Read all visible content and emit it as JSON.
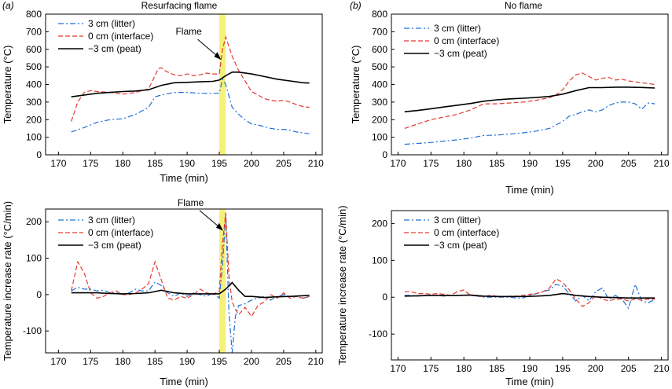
{
  "figure": {
    "title_a": "Resurfacing flame",
    "title_b": "No flame",
    "letter_a": "(a)",
    "letter_b": "(b)",
    "flame_label": "Flame",
    "highlight_color": "#f5f07a"
  },
  "chart_data": [
    {
      "id": "a-top",
      "type": "line",
      "title": "",
      "xlabel": "Time (min)",
      "ylabel": "Temperature (°C)",
      "xlim": [
        168,
        211
      ],
      "ylim": [
        0,
        800
      ],
      "xticks": [
        170,
        175,
        180,
        185,
        190,
        195,
        200,
        205,
        210
      ],
      "yticks": [
        0,
        100,
        200,
        300,
        400,
        500,
        600,
        700,
        800
      ],
      "flame_band": [
        195,
        196
      ],
      "flame_arrow_target": [
        195.3,
        540
      ],
      "series": [
        {
          "name": "3 cm (litter)",
          "color": "#1f6fd6",
          "dash": "dashdot",
          "x": [
            172,
            174,
            176,
            178,
            180,
            182,
            184,
            185,
            186,
            188,
            190,
            192,
            194,
            195,
            195.5,
            196,
            197,
            198,
            199,
            200,
            201,
            202,
            203,
            204,
            205,
            206,
            207,
            208,
            209
          ],
          "y": [
            130,
            155,
            185,
            200,
            205,
            230,
            270,
            330,
            340,
            355,
            355,
            350,
            350,
            350,
            430,
            400,
            270,
            230,
            200,
            175,
            170,
            160,
            150,
            145,
            145,
            140,
            130,
            125,
            120
          ]
        },
        {
          "name": "0 cm (interface)",
          "color": "#e23a2f",
          "dash": "dash",
          "x": [
            172,
            173,
            174,
            175,
            176,
            178,
            180,
            182,
            184,
            185,
            185.5,
            186,
            186.5,
            187,
            188,
            189,
            190,
            191,
            192,
            193,
            194,
            195,
            195.5,
            196,
            197,
            198,
            199,
            200,
            201,
            202,
            203,
            204,
            205,
            206,
            207,
            208,
            209
          ],
          "y": [
            190,
            300,
            355,
            365,
            360,
            355,
            345,
            355,
            375,
            450,
            490,
            495,
            480,
            470,
            455,
            450,
            460,
            450,
            455,
            465,
            460,
            460,
            600,
            670,
            560,
            480,
            420,
            360,
            340,
            320,
            310,
            305,
            310,
            300,
            285,
            275,
            270
          ]
        },
        {
          "name": "−3 cm (peat)",
          "color": "#000000",
          "dash": "solid",
          "x": [
            172,
            174,
            176,
            178,
            180,
            182,
            184,
            186,
            188,
            190,
            192,
            194,
            195,
            196,
            197,
            198,
            200,
            202,
            204,
            206,
            208,
            209
          ],
          "y": [
            330,
            340,
            350,
            355,
            360,
            363,
            370,
            395,
            410,
            412,
            415,
            418,
            425,
            450,
            470,
            470,
            460,
            445,
            430,
            420,
            410,
            408
          ]
        }
      ]
    },
    {
      "id": "a-bottom",
      "type": "line",
      "title": "",
      "xlabel": "Time (min)",
      "ylabel": "Temperature increase rate (°C/min)",
      "xlim": [
        168,
        211
      ],
      "ylim": [
        -160,
        235
      ],
      "xticks": [
        170,
        175,
        180,
        185,
        190,
        195,
        200,
        205,
        210
      ],
      "yticks": [
        -100,
        0,
        100,
        200
      ],
      "flame_band": [
        195,
        196
      ],
      "flame_arrow_target": [
        195.6,
        175
      ],
      "series": [
        {
          "name": "3 cm (litter)",
          "color": "#1f6fd6",
          "dash": "dashdot",
          "x": [
            172,
            173,
            174,
            175,
            176,
            177,
            178,
            179,
            180,
            181,
            182,
            183,
            184,
            185,
            186,
            187,
            188,
            189,
            190,
            191,
            192,
            193,
            194,
            195,
            195.5,
            196,
            196.5,
            197,
            197.5,
            198,
            199,
            200,
            201,
            202,
            203,
            204,
            205,
            206,
            207,
            208,
            209
          ],
          "y": [
            10,
            20,
            15,
            15,
            10,
            12,
            5,
            5,
            0,
            5,
            15,
            10,
            10,
            35,
            25,
            5,
            -5,
            5,
            -5,
            5,
            0,
            -5,
            5,
            -10,
            80,
            220,
            -50,
            -160,
            -60,
            -30,
            -25,
            -15,
            -10,
            -5,
            -15,
            -5,
            0,
            -5,
            -5,
            -10,
            -5
          ]
        },
        {
          "name": "0 cm (interface)",
          "color": "#e23a2f",
          "dash": "dash",
          "x": [
            172,
            173,
            174,
            175,
            176,
            177,
            178,
            179,
            180,
            181,
            182,
            183,
            184,
            185,
            186,
            187,
            188,
            189,
            190,
            191,
            192,
            193,
            194,
            195,
            195.5,
            196,
            196.5,
            197,
            197.5,
            198,
            199,
            200,
            201,
            202,
            203,
            204,
            205,
            206,
            207,
            208,
            209
          ],
          "y": [
            10,
            90,
            60,
            5,
            -10,
            -5,
            5,
            10,
            0,
            0,
            5,
            15,
            30,
            90,
            40,
            -10,
            -15,
            -5,
            -10,
            0,
            15,
            5,
            0,
            10,
            140,
            225,
            50,
            -20,
            -40,
            -55,
            -35,
            -60,
            -30,
            -20,
            0,
            -10,
            5,
            -10,
            -5,
            -10,
            -5
          ]
        },
        {
          "name": "−3 cm (peat)",
          "color": "#000000",
          "dash": "solid",
          "x": [
            172,
            174,
            176,
            178,
            180,
            182,
            184,
            186,
            188,
            190,
            192,
            194,
            195,
            196,
            197,
            198,
            199,
            200,
            202,
            204,
            206,
            208,
            209
          ],
          "y": [
            5,
            5,
            5,
            3,
            2,
            3,
            5,
            12,
            5,
            2,
            2,
            2,
            2,
            15,
            33,
            12,
            -5,
            -5,
            -8,
            -6,
            -5,
            -3,
            -2
          ]
        }
      ]
    },
    {
      "id": "b-top",
      "type": "line",
      "title": "",
      "xlabel": "Time (min)",
      "ylabel": "Temperature (°C)",
      "xlim": [
        169,
        211
      ],
      "ylim": [
        0,
        800
      ],
      "xticks": [
        170,
        175,
        180,
        185,
        190,
        195,
        200,
        205,
        210
      ],
      "yticks": [
        0,
        100,
        200,
        300,
        400,
        500,
        600,
        700,
        800
      ],
      "series": [
        {
          "name": "3 cm (litter)",
          "color": "#1f6fd6",
          "dash": "dashdot",
          "x": [
            171,
            173,
            175,
            177,
            179,
            181,
            183,
            185,
            187,
            189,
            191,
            193,
            195,
            196,
            197,
            198,
            199,
            200,
            201,
            202,
            203,
            204,
            205,
            206,
            207,
            208,
            209
          ],
          "y": [
            60,
            65,
            70,
            78,
            85,
            95,
            110,
            112,
            118,
            125,
            135,
            150,
            190,
            220,
            230,
            245,
            255,
            245,
            255,
            280,
            295,
            300,
            300,
            290,
            260,
            295,
            290
          ]
        },
        {
          "name": "0 cm (interface)",
          "color": "#e23a2f",
          "dash": "dash",
          "x": [
            171,
            173,
            175,
            177,
            179,
            181,
            183,
            185,
            187,
            189,
            191,
            193,
            194,
            195,
            196,
            197,
            198,
            199,
            200,
            201,
            202,
            203,
            204,
            205,
            206,
            207,
            208,
            209
          ],
          "y": [
            150,
            175,
            200,
            215,
            230,
            255,
            290,
            290,
            295,
            300,
            310,
            325,
            340,
            370,
            420,
            455,
            465,
            445,
            425,
            435,
            440,
            425,
            430,
            420,
            415,
            410,
            405,
            400
          ]
        },
        {
          "name": "−3 cm (peat)",
          "color": "#000000",
          "dash": "solid",
          "x": [
            171,
            173,
            175,
            177,
            179,
            181,
            183,
            185,
            187,
            189,
            191,
            193,
            195,
            197,
            199,
            201,
            203,
            205,
            207,
            209
          ],
          "y": [
            245,
            252,
            262,
            272,
            282,
            292,
            305,
            313,
            318,
            322,
            326,
            332,
            345,
            365,
            382,
            382,
            385,
            385,
            383,
            380
          ]
        }
      ]
    },
    {
      "id": "b-bottom",
      "type": "line",
      "title": "",
      "xlabel": "Time (min)",
      "ylabel": "Temperature increase rate (°C/min)",
      "xlim": [
        169,
        211
      ],
      "ylim": [
        -170,
        235
      ],
      "xticks": [
        170,
        175,
        180,
        185,
        190,
        195,
        200,
        205,
        210
      ],
      "yticks": [
        -100,
        0,
        100,
        200
      ],
      "series": [
        {
          "name": "3 cm (litter)",
          "color": "#1f6fd6",
          "dash": "dashdot",
          "x": [
            171,
            172,
            173,
            174,
            175,
            176,
            177,
            178,
            179,
            180,
            181,
            182,
            183,
            184,
            185,
            186,
            187,
            188,
            189,
            190,
            191,
            192,
            193,
            194,
            195,
            196,
            197,
            198,
            199,
            200,
            201,
            202,
            203,
            204,
            205,
            206,
            207,
            208,
            209
          ],
          "y": [
            5,
            5,
            3,
            5,
            5,
            5,
            3,
            5,
            5,
            5,
            5,
            3,
            0,
            0,
            0,
            0,
            0,
            -2,
            -2,
            5,
            10,
            15,
            20,
            35,
            30,
            10,
            -10,
            5,
            -10,
            15,
            25,
            -5,
            5,
            -5,
            -30,
            35,
            -10,
            -15,
            -5
          ]
        },
        {
          "name": "0 cm (interface)",
          "color": "#e23a2f",
          "dash": "dash",
          "x": [
            171,
            172,
            173,
            174,
            175,
            176,
            177,
            178,
            179,
            180,
            181,
            182,
            183,
            184,
            185,
            186,
            187,
            188,
            189,
            190,
            191,
            192,
            193,
            194,
            195,
            196,
            197,
            198,
            199,
            200,
            201,
            202,
            203,
            204,
            205,
            206,
            207,
            208,
            209
          ],
          "y": [
            15,
            15,
            10,
            10,
            8,
            10,
            8,
            5,
            15,
            20,
            5,
            3,
            2,
            5,
            3,
            2,
            3,
            3,
            5,
            8,
            10,
            15,
            25,
            50,
            40,
            20,
            -5,
            -25,
            -15,
            5,
            -5,
            -10,
            -5,
            -5,
            -10,
            -5,
            -8,
            -5,
            -5
          ]
        },
        {
          "name": "−3 cm (peat)",
          "color": "#000000",
          "dash": "solid",
          "x": [
            171,
            173,
            175,
            177,
            179,
            181,
            183,
            185,
            187,
            189,
            191,
            193,
            195,
            196,
            197,
            199,
            201,
            203,
            205,
            207,
            209
          ],
          "y": [
            3,
            4,
            5,
            5,
            5,
            6,
            3,
            2,
            2,
            2,
            3,
            5,
            10,
            8,
            5,
            2,
            0,
            -1,
            -2,
            -2,
            -2
          ]
        }
      ]
    }
  ]
}
